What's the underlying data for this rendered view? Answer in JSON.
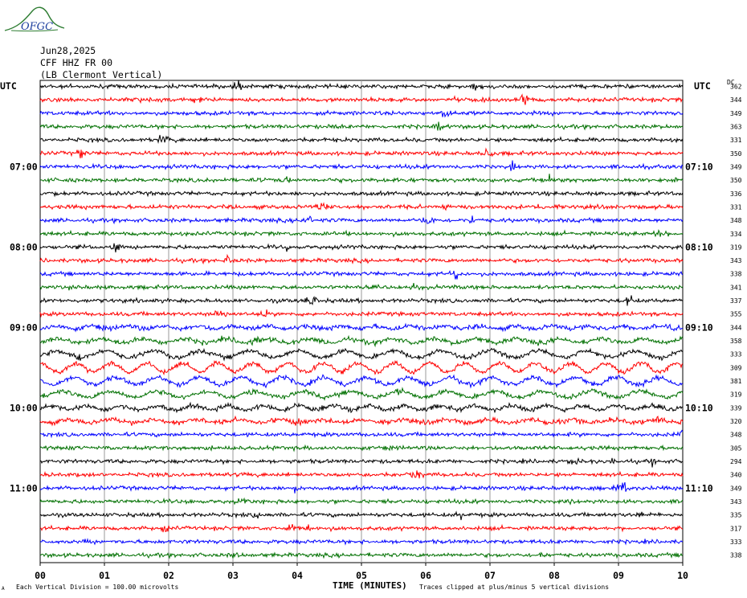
{
  "logo": {
    "text": "OFGC"
  },
  "header": {
    "date": "Jun28,2025",
    "station": "CFF HHZ FR 00",
    "location": "(LB  Clermont Vertical)"
  },
  "axis": {
    "left_tz": "UTC",
    "right_tz": "UTC",
    "dc_label": "DC",
    "xlabel": "TIME (MINUTES)"
  },
  "footer": {
    "scale_note": "Each Vertical Division =  100.00 microvolts",
    "clip_note": "Traces clipped at plus/minus 5 vertical divisions",
    "corner_mark": "A"
  },
  "colors": {
    "trace": [
      "#000000",
      "#ff0000",
      "#0000ff",
      "#007000"
    ],
    "grid": "#9a9a9a"
  },
  "chart_data": {
    "type": "line",
    "title": "CFF HHZ FR 00 (LB Clermont Vertical) Jun28,2025",
    "xlabel": "TIME (MINUTES)",
    "ylabel": "UTC",
    "xlim": [
      0,
      10
    ],
    "x_ticks": [
      "00",
      "01",
      "02",
      "03",
      "04",
      "05",
      "06",
      "07",
      "08",
      "09",
      "10"
    ],
    "left_time_labels": [
      "07:00",
      "08:00",
      "09:00",
      "10:00",
      "11:00"
    ],
    "right_time_labels": [
      "07:10",
      "08:10",
      "09:10",
      "10:10",
      "11:10"
    ],
    "dc_offsets": [
      362,
      344,
      349,
      363,
      331,
      350,
      349,
      350,
      336,
      331,
      348,
      334,
      319,
      343,
      338,
      341,
      337,
      355,
      344,
      358,
      333,
      309,
      381,
      319,
      339,
      320,
      348,
      305,
      294,
      340,
      349,
      343,
      335,
      317,
      333,
      338
    ],
    "trace_count": 36,
    "grid": true
  }
}
